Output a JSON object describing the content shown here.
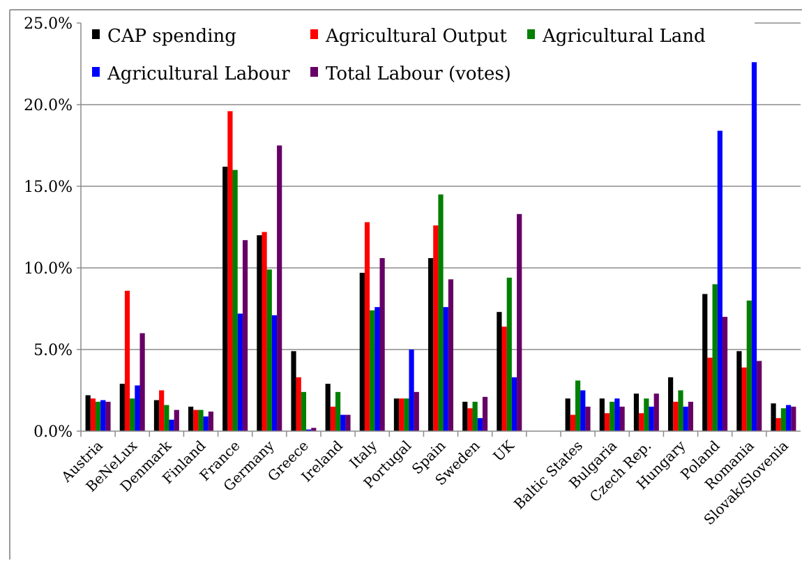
{
  "chart_data": {
    "type": "bar",
    "title": "",
    "xlabel": "",
    "ylabel": "",
    "ylim": [
      0,
      25
    ],
    "yticks": [
      "0.0%",
      "5.0%",
      "10.0%",
      "15.0%",
      "20.0%",
      "25.0%"
    ],
    "grid": true,
    "legend_position": "top",
    "categories": [
      "Austria",
      "BeNeLux",
      "Denmark",
      "Finland",
      "France",
      "Germany",
      "Greece",
      "Ireland",
      "Italy",
      "Portugal",
      "Spain",
      "Sweden",
      "UK",
      "",
      "Baltic States",
      "Bulgaria",
      "Czech Rep.",
      "Hungary",
      "Poland",
      "Romania",
      "Slovak/Slovenia"
    ],
    "series": [
      {
        "name": "CAP spending",
        "color": "#000000",
        "values": [
          2.2,
          2.9,
          1.9,
          1.5,
          16.2,
          12.0,
          4.9,
          2.9,
          9.7,
          2.0,
          10.6,
          1.8,
          7.3,
          null,
          2.0,
          2.0,
          2.3,
          3.3,
          8.4,
          4.9,
          1.7
        ]
      },
      {
        "name": "Agricultural Output",
        "color": "#ff0000",
        "values": [
          2.0,
          8.6,
          2.5,
          1.3,
          19.6,
          12.2,
          3.3,
          1.5,
          12.8,
          2.0,
          12.6,
          1.4,
          6.4,
          null,
          1.0,
          1.1,
          1.1,
          1.8,
          4.5,
          3.9,
          0.8
        ]
      },
      {
        "name": "Agricultural Land",
        "color": "#008000",
        "values": [
          1.8,
          2.0,
          1.6,
          1.3,
          16.0,
          9.9,
          2.4,
          2.4,
          7.4,
          2.0,
          14.5,
          1.8,
          9.4,
          null,
          3.1,
          1.8,
          2.0,
          2.5,
          9.0,
          8.0,
          1.4
        ]
      },
      {
        "name": "Agricultural Labour",
        "color": "#0000ff",
        "values": [
          1.9,
          2.8,
          0.7,
          0.9,
          7.2,
          7.1,
          0.1,
          1.0,
          7.6,
          5.0,
          7.6,
          0.8,
          3.3,
          null,
          2.5,
          2.0,
          1.5,
          1.5,
          18.4,
          22.6,
          1.6
        ]
      },
      {
        "name": "Total Labour (votes)",
        "color": "#660066",
        "values": [
          1.8,
          6.0,
          1.3,
          1.2,
          11.7,
          17.5,
          0.2,
          1.0,
          10.6,
          2.4,
          9.3,
          2.1,
          13.3,
          null,
          1.5,
          1.5,
          2.3,
          1.8,
          7.0,
          4.3,
          1.5
        ]
      }
    ]
  }
}
